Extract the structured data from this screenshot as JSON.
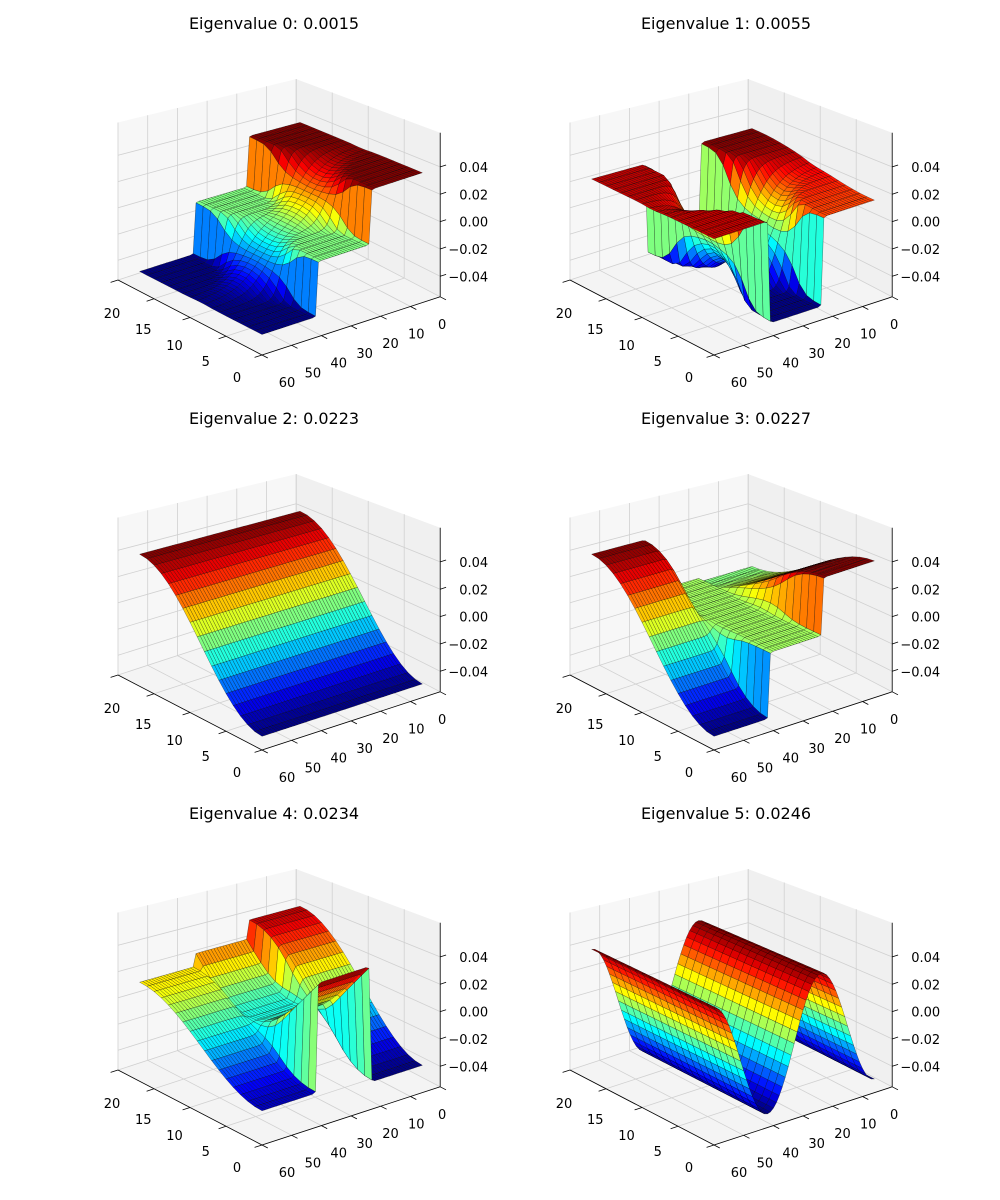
{
  "chart_data": [
    {
      "type": "surface",
      "title": "Eigenvalue 0: 0.0015",
      "eigen_index": 0,
      "eigenvalue": 0.0015,
      "x_ticks": [
        0,
        5,
        10,
        15,
        20
      ],
      "y_ticks": [
        0,
        10,
        20,
        30,
        40,
        50,
        60
      ],
      "z_ticks": [
        -0.04,
        -0.02,
        0.0,
        0.02,
        0.04
      ],
      "z_tick_labels": [
        "−0.04",
        "−0.02",
        "0.00",
        "0.02",
        "0.04"
      ],
      "xlim": [
        0,
        20
      ],
      "ylim": [
        0,
        60
      ],
      "zlim": [
        -0.055,
        0.065
      ],
      "colormap": "jet",
      "surface": {
        "mode": "bands",
        "x_range": [
          0,
          17
        ],
        "y_range": [
          6,
          60
        ],
        "blend": 4,
        "bands": {
          "low_y": {
            "front": 0.04,
            "back": 0.04,
            "mid": 0
          },
          "mid_y": {
            "front": 0.0,
            "back": 0.0,
            "mid": 0
          },
          "high_y": {
            "front": -0.04,
            "back": -0.04,
            "mid": 0
          }
        }
      }
    },
    {
      "type": "surface",
      "title": "Eigenvalue 1: 0.0055",
      "eigen_index": 1,
      "eigenvalue": 0.0055,
      "x_ticks": [
        0,
        5,
        10,
        15,
        20
      ],
      "y_ticks": [
        0,
        10,
        20,
        30,
        40,
        50,
        60
      ],
      "z_ticks": [
        -0.04,
        -0.02,
        0.0,
        0.02,
        0.04
      ],
      "z_tick_labels": [
        "−0.04",
        "−0.02",
        "0.00",
        "0.02",
        "0.04"
      ],
      "xlim": [
        0,
        20
      ],
      "ylim": [
        0,
        60
      ],
      "zlim": [
        -0.055,
        0.065
      ],
      "colormap": "jet",
      "surface": {
        "mode": "bands",
        "x_range": [
          0,
          17
        ],
        "y_range": [
          6,
          60
        ],
        "blend": 4,
        "bands": {
          "low_y": {
            "front": 0.02,
            "back": 0.035,
            "mid": 0
          },
          "mid_y": {
            "front": -0.045,
            "back": -0.04,
            "mid": 0
          },
          "high_y": {
            "front": 0.03,
            "back": 0.03,
            "mid": 0
          }
        }
      }
    },
    {
      "type": "surface",
      "title": "Eigenvalue 2: 0.0223",
      "eigen_index": 2,
      "eigenvalue": 0.0223,
      "x_ticks": [
        0,
        5,
        10,
        15,
        20
      ],
      "y_ticks": [
        0,
        10,
        20,
        30,
        40,
        50,
        60
      ],
      "z_ticks": [
        -0.04,
        -0.02,
        0.0,
        0.02,
        0.04
      ],
      "z_tick_labels": [
        "−0.04",
        "−0.02",
        "0.00",
        "0.02",
        "0.04"
      ],
      "xlim": [
        0,
        20
      ],
      "ylim": [
        0,
        60
      ],
      "zlim": [
        -0.055,
        0.065
      ],
      "colormap": "jet",
      "surface": {
        "mode": "bands",
        "x_range": [
          0,
          17
        ],
        "y_range": [
          6,
          60
        ],
        "blend": 0,
        "bands": {
          "low_y": {
            "front": -0.045,
            "back": 0.045,
            "mid": 0
          },
          "mid_y": {
            "front": -0.045,
            "back": 0.045,
            "mid": 0
          },
          "high_y": {
            "front": -0.045,
            "back": 0.045,
            "mid": 0
          }
        }
      }
    },
    {
      "type": "surface",
      "title": "Eigenvalue 3: 0.0227",
      "eigen_index": 3,
      "eigenvalue": 0.0227,
      "x_ticks": [
        0,
        5,
        10,
        15,
        20
      ],
      "y_ticks": [
        0,
        10,
        20,
        30,
        40,
        50,
        60
      ],
      "z_ticks": [
        -0.04,
        -0.02,
        0.0,
        0.02,
        0.04
      ],
      "z_tick_labels": [
        "−0.04",
        "−0.02",
        "0.00",
        "0.02",
        "0.04"
      ],
      "xlim": [
        0,
        20
      ],
      "ylim": [
        0,
        60
      ],
      "zlim": [
        -0.055,
        0.065
      ],
      "colormap": "jet",
      "surface": {
        "mode": "bands",
        "x_range": [
          0,
          17
        ],
        "y_range": [
          6,
          60
        ],
        "blend": 0.5,
        "bands": {
          "low_y": {
            "front": 0.045,
            "back": 0.0,
            "mid": 0
          },
          "mid_y": {
            "front": 0.003,
            "back": 0.003,
            "mid": 0
          },
          "high_y": {
            "front": -0.045,
            "back": 0.045,
            "mid": 0
          }
        }
      }
    },
    {
      "type": "surface",
      "title": "Eigenvalue 4: 0.0234",
      "eigen_index": 4,
      "eigenvalue": 0.0234,
      "x_ticks": [
        0,
        5,
        10,
        15,
        20
      ],
      "y_ticks": [
        0,
        10,
        20,
        30,
        40,
        50,
        60
      ],
      "z_ticks": [
        -0.04,
        -0.02,
        0.0,
        0.02,
        0.04
      ],
      "z_tick_labels": [
        "−0.04",
        "−0.02",
        "0.00",
        "0.02",
        "0.04"
      ],
      "xlim": [
        0,
        20
      ],
      "ylim": [
        0,
        60
      ],
      "zlim": [
        -0.055,
        0.065
      ],
      "colormap": "jet",
      "surface": {
        "mode": "bands",
        "x_range": [
          0,
          17
        ],
        "y_range": [
          6,
          60
        ],
        "blend": 0.5,
        "bands": {
          "low_y": {
            "front": -0.035,
            "back": 0.045,
            "mid": 0
          },
          "mid_y": {
            "front": 0.05,
            "back": 0.03,
            "mid": -0.04
          },
          "high_y": {
            "front": -0.03,
            "back": 0.02,
            "mid": 0
          }
        }
      }
    },
    {
      "type": "surface",
      "title": "Eigenvalue 5: 0.0246",
      "eigen_index": 5,
      "eigenvalue": 0.0246,
      "x_ticks": [
        0,
        5,
        10,
        15,
        20
      ],
      "y_ticks": [
        0,
        10,
        20,
        30,
        40,
        50,
        60
      ],
      "z_ticks": [
        -0.04,
        -0.02,
        0.0,
        0.02,
        0.04
      ],
      "z_tick_labels": [
        "−0.04",
        "−0.02",
        "0.00",
        "0.02",
        "0.04"
      ],
      "xlim": [
        0,
        20
      ],
      "ylim": [
        0,
        60
      ],
      "zlim": [
        -0.055,
        0.065
      ],
      "colormap": "jet",
      "surface": {
        "mode": "wave",
        "x_range": [
          0,
          17
        ],
        "y_range": [
          6,
          60
        ],
        "wave": {
          "amplitude": 0.045,
          "period": 36,
          "peak_y": 60
        }
      }
    }
  ]
}
